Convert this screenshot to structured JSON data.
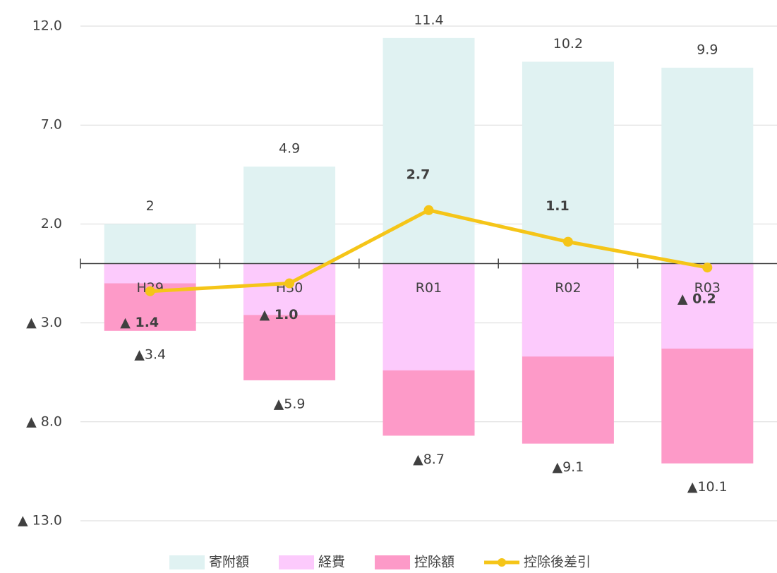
{
  "chart_data": {
    "type": "bar",
    "categories": [
      "H29",
      "H30",
      "R01",
      "R02",
      "R03"
    ],
    "series": [
      {
        "name": "寄附額",
        "color": "#e0f2f2",
        "values": [
          2.0,
          4.9,
          11.4,
          10.2,
          9.9
        ]
      },
      {
        "name": "控除額",
        "color": "#fd9ac8",
        "values": [
          -3.4,
          -5.9,
          -8.7,
          -9.1,
          -10.1
        ],
        "value_labels": [
          "▲3.4",
          "▲5.9",
          "▲8.7",
          "▲9.1",
          "▲10.1"
        ]
      },
      {
        "name": "経費",
        "color": "#fccafc",
        "values": [
          -1.0,
          -2.6,
          -5.4,
          -4.7,
          -4.3
        ]
      },
      {
        "name": "控除後差引",
        "type": "line",
        "color": "#f5c518",
        "values": [
          -1.4,
          -1.0,
          2.7,
          1.1,
          -0.2
        ],
        "value_labels": [
          "▲ 1.4",
          "▲ 1.0",
          "2.7",
          "1.1",
          "▲ 0.2"
        ]
      }
    ],
    "legend_order": [
      0,
      2,
      1,
      3
    ],
    "ylim": [
      -13,
      12
    ],
    "yticks": [
      {
        "value": 12,
        "label": "12.0"
      },
      {
        "value": 7,
        "label": "7.0"
      },
      {
        "value": 2,
        "label": "2.0"
      },
      {
        "value": -3,
        "label": "▲ 3.0"
      },
      {
        "value": -8,
        "label": "▲ 8.0"
      },
      {
        "value": -13,
        "label": "▲ 13.0"
      }
    ],
    "grid": true
  }
}
